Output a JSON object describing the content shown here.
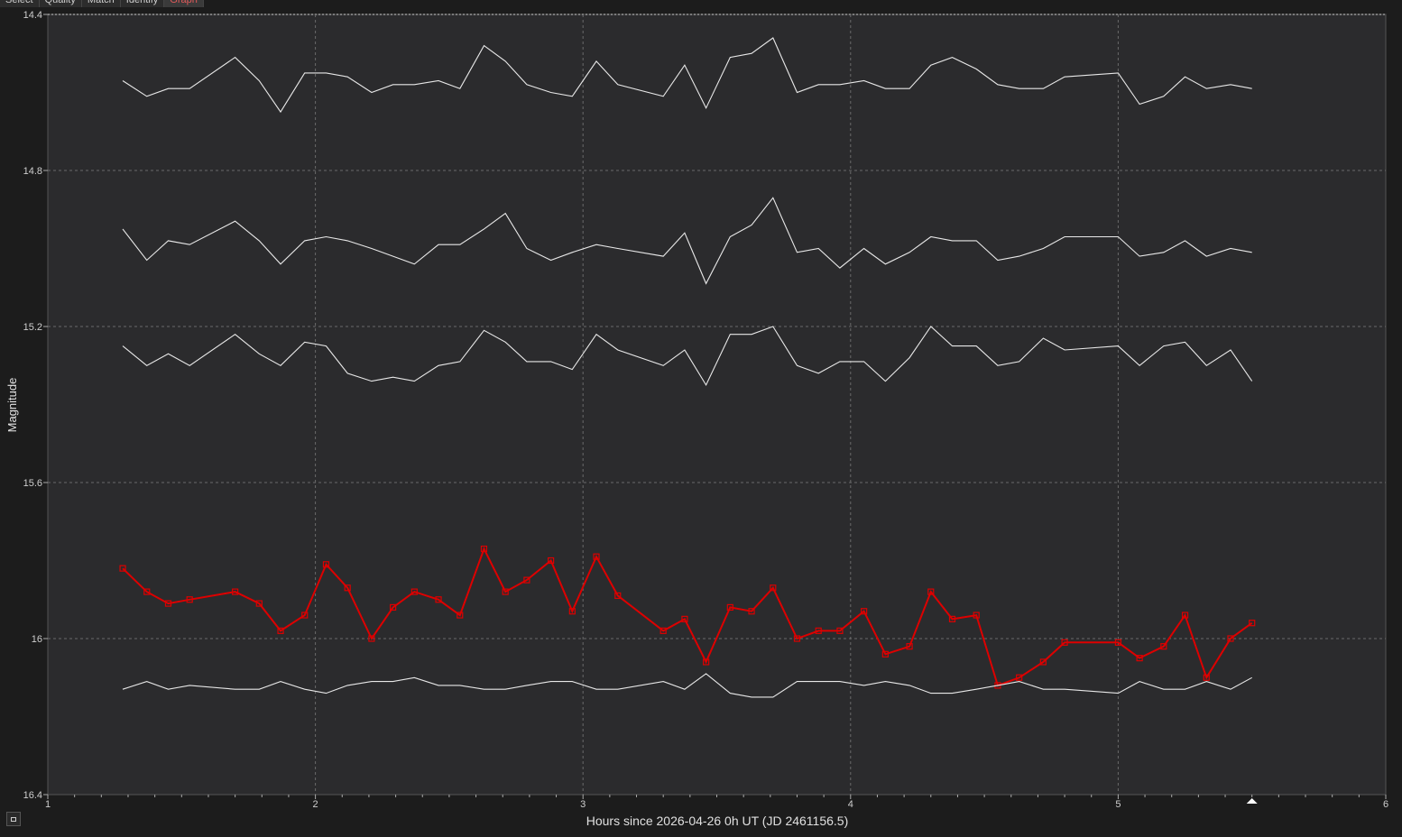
{
  "tabs": [
    {
      "label": "Select",
      "active": false
    },
    {
      "label": "Quality",
      "active": false
    },
    {
      "label": "Match",
      "active": false
    },
    {
      "label": "Identify",
      "active": false
    },
    {
      "label": "Graph",
      "active": true
    }
  ],
  "colors": {
    "background": "#2b2b2d",
    "comparison": "#e8e8e8",
    "target": "#dd0000",
    "grid": "#6a6a6a"
  },
  "chart_data": {
    "type": "line",
    "xlabel": "Hours since 2026-04-26 0h UT (JD 2461156.5)",
    "ylabel": "Magnitude",
    "xlim": [
      1,
      6
    ],
    "ylim": [
      16.4,
      14.4
    ],
    "y_inverted": true,
    "x_ticks": [
      1,
      2,
      3,
      4,
      5,
      6
    ],
    "y_ticks": [
      14.4,
      14.8,
      15.2,
      15.6,
      16,
      16.4
    ],
    "y_tick_labels": [
      "14.4",
      "14.8",
      "15.2",
      "15.6",
      "16",
      "16.4"
    ],
    "grid": true,
    "marker_x": 5.5,
    "x": [
      1.28,
      1.37,
      1.45,
      1.53,
      1.7,
      1.79,
      1.87,
      1.96,
      2.04,
      2.12,
      2.21,
      2.29,
      2.37,
      2.46,
      2.54,
      2.63,
      2.71,
      2.79,
      2.88,
      2.96,
      3.05,
      3.13,
      3.3,
      3.38,
      3.46,
      3.55,
      3.63,
      3.71,
      3.8,
      3.88,
      3.96,
      4.05,
      4.13,
      4.22,
      4.3,
      4.38,
      4.47,
      4.55,
      4.63,
      4.72,
      4.8,
      5.0,
      5.08,
      5.17,
      5.25,
      5.33,
      5.42,
      5.5
    ],
    "series": [
      {
        "style": "comparison",
        "values": [
          14.57,
          14.61,
          14.59,
          14.59,
          14.51,
          14.57,
          14.65,
          14.55,
          14.55,
          14.56,
          14.6,
          14.58,
          14.58,
          14.57,
          14.59,
          14.48,
          14.52,
          14.58,
          14.6,
          14.61,
          14.52,
          14.58,
          14.61,
          14.53,
          14.64,
          14.51,
          14.5,
          14.46,
          14.6,
          14.58,
          14.58,
          14.57,
          14.59,
          14.59,
          14.53,
          14.51,
          14.54,
          14.58,
          14.59,
          14.59,
          14.56,
          14.55,
          14.63,
          14.61,
          14.56,
          14.59,
          14.58,
          14.59
        ]
      },
      {
        "style": "comparison",
        "values": [
          14.95,
          15.03,
          14.98,
          14.99,
          14.93,
          14.98,
          15.04,
          14.98,
          14.97,
          14.98,
          15.0,
          15.02,
          15.04,
          14.99,
          14.99,
          14.95,
          14.91,
          15.0,
          15.03,
          15.01,
          14.99,
          15.0,
          15.02,
          14.96,
          15.09,
          14.97,
          14.94,
          14.87,
          15.01,
          15.0,
          15.05,
          15.0,
          15.04,
          15.01,
          14.97,
          14.98,
          14.98,
          15.03,
          15.02,
          15.0,
          14.97,
          14.97,
          15.02,
          15.01,
          14.98,
          15.02,
          15.0,
          15.01
        ]
      },
      {
        "style": "comparison",
        "values": [
          15.25,
          15.3,
          15.27,
          15.3,
          15.22,
          15.27,
          15.3,
          15.24,
          15.25,
          15.32,
          15.34,
          15.33,
          15.34,
          15.3,
          15.29,
          15.21,
          15.24,
          15.29,
          15.29,
          15.31,
          15.22,
          15.26,
          15.3,
          15.26,
          15.35,
          15.22,
          15.22,
          15.2,
          15.3,
          15.32,
          15.29,
          15.29,
          15.34,
          15.28,
          15.2,
          15.25,
          15.25,
          15.3,
          15.29,
          15.23,
          15.26,
          15.25,
          15.3,
          15.25,
          15.24,
          15.3,
          15.26,
          15.34
        ]
      },
      {
        "style": "target",
        "values": [
          15.82,
          15.88,
          15.91,
          15.9,
          15.88,
          15.91,
          15.98,
          15.94,
          15.81,
          15.87,
          16.0,
          15.92,
          15.88,
          15.9,
          15.94,
          15.77,
          15.88,
          15.85,
          15.8,
          15.93,
          15.79,
          15.89,
          15.98,
          15.95,
          16.06,
          15.92,
          15.93,
          15.87,
          16.0,
          15.98,
          15.98,
          15.93,
          16.04,
          16.02,
          15.88,
          15.95,
          15.94,
          16.12,
          16.1,
          16.06,
          16.01,
          16.01,
          16.05,
          16.02,
          15.94,
          16.1,
          16.0,
          15.96
        ]
      },
      {
        "style": "comparison",
        "values": [
          16.13,
          16.11,
          16.13,
          16.12,
          16.13,
          16.13,
          16.11,
          16.13,
          16.14,
          16.12,
          16.11,
          16.11,
          16.1,
          16.12,
          16.12,
          16.13,
          16.13,
          16.12,
          16.11,
          16.11,
          16.13,
          16.13,
          16.11,
          16.13,
          16.09,
          16.14,
          16.15,
          16.15,
          16.11,
          16.11,
          16.11,
          16.12,
          16.11,
          16.12,
          16.14,
          16.14,
          16.13,
          16.12,
          16.11,
          16.13,
          16.13,
          16.14,
          16.11,
          16.13,
          16.13,
          16.11,
          16.13,
          16.1
        ]
      }
    ]
  }
}
